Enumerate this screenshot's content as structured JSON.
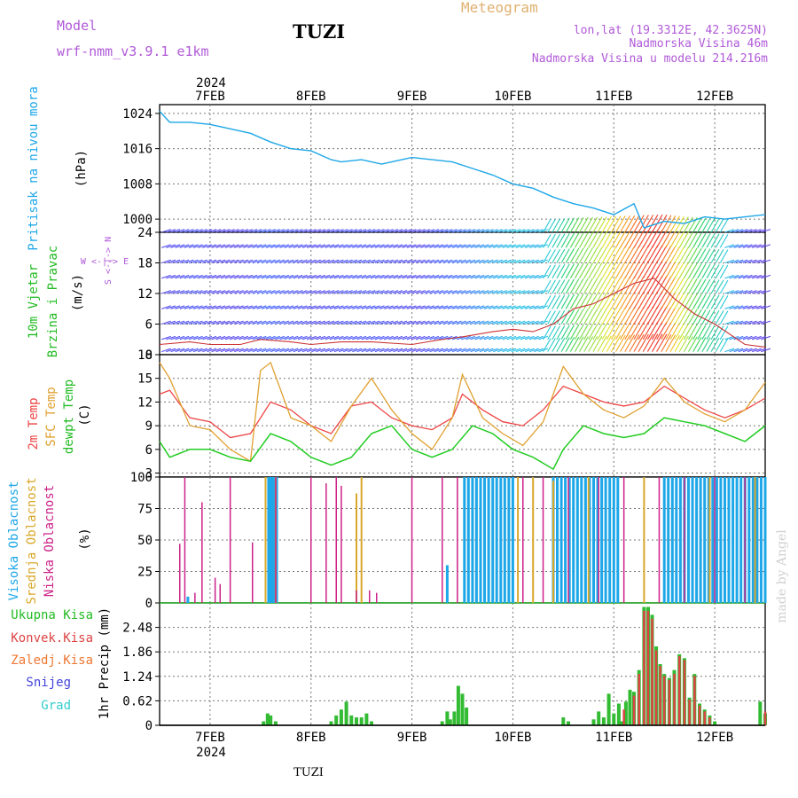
{
  "header": {
    "model_label": "Model",
    "model_name": "wrf-nmm_v3.9.1 e1km",
    "station": "TUZI",
    "title": "Meteogram",
    "location": "lon,lat (19.3312E, 42.3625N)",
    "elevation": "Nadmorska Visina 46m",
    "model_elevation": "Nadmorska Visina u modelu 214.216m"
  },
  "time_axis": {
    "year": "2024",
    "days": [
      "7FEB",
      "8FEB",
      "9FEB",
      "10FEB",
      "11FEB",
      "12FEB"
    ]
  },
  "footer": {
    "station": "TUZI",
    "watermark": "made by Angel"
  },
  "colors": {
    "pressure": "#1ea7e8",
    "wind_speed": "#cc3333",
    "temp_2m": "#ee4444",
    "temp_sfc": "#e0a030",
    "dewpoint": "#22cc22",
    "cloud_high": "#1ea7e8",
    "cloud_mid": "#d9a82a",
    "cloud_low": "#cc2288",
    "precip_total": "#33bb33",
    "precip_conv": "#dd4444",
    "precip_frz": "#ee7733",
    "snow": "#4444dd",
    "hail": "#33cccc"
  },
  "chart_data": [
    {
      "type": "line",
      "name": "pressure",
      "ylabel": "Pritisak na nivou mora",
      "unit": "(hPa)",
      "ylim": [
        997,
        1026
      ],
      "yticks": [
        1000,
        1008,
        1016,
        1024
      ],
      "grid": true,
      "series": [
        {
          "x": [
            6.5,
            6.6,
            6.8,
            7.0,
            7.2,
            7.4,
            7.6,
            7.8,
            8.0,
            8.2,
            8.3,
            8.5,
            8.7,
            8.9,
            9.0,
            9.2,
            9.4,
            9.6,
            9.8,
            10.0,
            10.2,
            10.4,
            10.6,
            10.8,
            11.0,
            11.2,
            11.3,
            11.5,
            11.7,
            11.9,
            12.1,
            12.3,
            12.5
          ],
          "y": [
            1024.5,
            1022,
            1022,
            1021.5,
            1020.5,
            1019.5,
            1017.5,
            1016,
            1015.5,
            1013.5,
            1013,
            1013.5,
            1012.5,
            1013.5,
            1014,
            1013.5,
            1013,
            1011.5,
            1010,
            1008,
            1007,
            1005,
            1003.5,
            1002.5,
            1001,
            1003.5,
            998,
            999.5,
            999,
            1000.5,
            1000,
            1000.5,
            1001
          ]
        }
      ]
    },
    {
      "type": "barbs",
      "name": "wind",
      "ylabel": "10m Vjetar Brzina i Pravac",
      "unit": "(m/s)",
      "direction_legend": "W <-|-> E",
      "direction_legend_ns": "S <-|-> N",
      "ylim": [
        0,
        24
      ],
      "yticks": [
        0,
        6,
        12,
        18,
        24
      ],
      "grid": true,
      "speed": {
        "x": [
          6.5,
          6.8,
          7.0,
          7.3,
          7.5,
          7.8,
          8.0,
          8.3,
          8.6,
          9.0,
          9.3,
          9.5,
          9.8,
          10.0,
          10.2,
          10.4,
          10.6,
          10.8,
          11.0,
          11.2,
          11.4,
          11.6,
          11.8,
          12.0,
          12.3,
          12.5
        ],
        "y": [
          2,
          2.5,
          2,
          2,
          3,
          2.5,
          2,
          2.5,
          2.5,
          2,
          3,
          3.5,
          4.5,
          5,
          4.5,
          6,
          9,
          10,
          12,
          14,
          15,
          11,
          8,
          6,
          2,
          1.5
        ]
      }
    },
    {
      "type": "line",
      "name": "temperature",
      "ylabel": "2m Temp / SFC Temp / dewpt Temp",
      "unit": "(C)",
      "ylim": [
        2.5,
        18
      ],
      "yticks": [
        3,
        6,
        9,
        12,
        15,
        18
      ],
      "grid": true,
      "series": [
        {
          "name": "2m Temp",
          "x": [
            6.5,
            6.6,
            6.8,
            7.0,
            7.2,
            7.4,
            7.6,
            7.8,
            8.0,
            8.2,
            8.4,
            8.6,
            8.8,
            9.0,
            9.2,
            9.4,
            9.5,
            9.7,
            9.9,
            10.1,
            10.3,
            10.5,
            10.7,
            10.9,
            11.1,
            11.3,
            11.5,
            11.7,
            11.9,
            12.1,
            12.3,
            12.5
          ],
          "y": [
            13,
            13.5,
            10,
            9.5,
            7.5,
            8,
            12,
            11,
            9,
            8,
            11.5,
            12,
            10,
            9,
            8.5,
            10,
            13,
            11,
            9.5,
            9,
            11,
            14,
            13,
            12,
            11.5,
            12,
            14,
            12.5,
            11,
            10,
            11,
            12.5
          ]
        },
        {
          "name": "SFC Temp",
          "x": [
            6.5,
            6.6,
            6.8,
            7.0,
            7.2,
            7.4,
            7.5,
            7.6,
            7.8,
            8.0,
            8.2,
            8.4,
            8.6,
            8.8,
            9.0,
            9.2,
            9.4,
            9.5,
            9.7,
            9.9,
            10.1,
            10.3,
            10.5,
            10.7,
            10.9,
            11.1,
            11.3,
            11.5,
            11.7,
            11.9,
            12.1,
            12.3,
            12.5
          ],
          "y": [
            17,
            15,
            9,
            8.5,
            6,
            4.5,
            16,
            17,
            10,
            9,
            7,
            11.5,
            15,
            11,
            8,
            6,
            10,
            15.5,
            10,
            8,
            6.5,
            9.5,
            16.5,
            13,
            11,
            10,
            11.5,
            15,
            12,
            10.5,
            9.5,
            11,
            14.5
          ]
        },
        {
          "name": "dewpt Temp",
          "x": [
            6.5,
            6.6,
            6.8,
            7.0,
            7.2,
            7.4,
            7.6,
            7.8,
            8.0,
            8.2,
            8.4,
            8.6,
            8.8,
            9.0,
            9.2,
            9.4,
            9.6,
            9.8,
            10.0,
            10.2,
            10.4,
            10.5,
            10.7,
            10.9,
            11.1,
            11.3,
            11.5,
            11.7,
            11.9,
            12.1,
            12.3,
            12.5
          ],
          "y": [
            7,
            5,
            6,
            6,
            5,
            4.5,
            8,
            7,
            5,
            4,
            5,
            8,
            9,
            6,
            5,
            6,
            9,
            8,
            6,
            5,
            3.5,
            6,
            9,
            8,
            7.5,
            8,
            10,
            9.5,
            9,
            8,
            7,
            9
          ]
        }
      ]
    },
    {
      "type": "bar",
      "name": "cloud_cover",
      "ylabel": "Visoka Oblacnost / Srednja Oblacnost / Niska Oblacnost",
      "unit": "(%)",
      "ylim": [
        0,
        100
      ],
      "yticks": [
        0,
        25,
        50,
        75,
        100
      ],
      "grid": true,
      "low_bars": {
        "x": [
          6.7,
          6.75,
          6.85,
          6.92,
          7.05,
          7.1,
          7.2,
          7.42,
          7.65,
          8.0,
          8.15,
          8.25,
          8.3,
          8.45,
          8.58,
          8.65,
          9.0,
          9.3,
          9.45,
          10.1,
          10.3,
          10.55,
          10.85,
          11.1,
          11.45,
          11.7,
          12.0,
          12.3
        ],
        "y": [
          47,
          100,
          8,
          80,
          20,
          15,
          100,
          48,
          100,
          100,
          95,
          100,
          93,
          10,
          10,
          8,
          100,
          100,
          100,
          100,
          100,
          100,
          100,
          100,
          100,
          100,
          100,
          100
        ]
      },
      "mid_bars": {
        "x": [
          7.55,
          7.65,
          8.45,
          8.5,
          10.05,
          10.2,
          10.4,
          10.75,
          11.3,
          11.95,
          12.4
        ],
        "y": [
          100,
          100,
          87,
          100,
          100,
          100,
          97,
          100,
          100,
          100,
          100
        ]
      },
      "high_bars": {
        "x": [
          6.78,
          7.58,
          7.6,
          7.62,
          7.64,
          7.66,
          9.35,
          9.52,
          9.56,
          9.6,
          9.64,
          9.68,
          9.72,
          9.76,
          9.8,
          9.84,
          9.88,
          9.92,
          9.96,
          10.0,
          10.4,
          10.44,
          10.48,
          10.52,
          10.56,
          10.6,
          10.64,
          10.68,
          10.72,
          10.76,
          10.8,
          10.84,
          10.88,
          10.92,
          10.96,
          11.0,
          11.04,
          11.5,
          11.54,
          11.58,
          11.62,
          11.66,
          11.7,
          11.74,
          11.78,
          11.82,
          11.86,
          11.9,
          11.94,
          11.98,
          12.02,
          12.06,
          12.1,
          12.14,
          12.18,
          12.22,
          12.26,
          12.3,
          12.34,
          12.38,
          12.42,
          12.46,
          12.5
        ],
        "y": [
          5,
          100,
          100,
          100,
          100,
          100,
          30,
          100,
          100,
          100,
          100,
          100,
          100,
          100,
          100,
          100,
          100,
          100,
          100,
          100,
          100,
          100,
          100,
          100,
          100,
          100,
          100,
          100,
          100,
          100,
          100,
          100,
          100,
          100,
          100,
          100,
          100,
          100,
          100,
          100,
          100,
          100,
          100,
          100,
          100,
          100,
          100,
          100,
          100,
          100,
          100,
          100,
          100,
          100,
          100,
          100,
          100,
          100,
          100,
          100,
          100,
          100,
          100
        ]
      }
    },
    {
      "type": "bar",
      "name": "precip",
      "ylabel": "1hr Precip (mm)",
      "legend": [
        "Ukupna Kisa",
        "Konvek.Kisa",
        "Zaledj.Kisa",
        "Snijeg",
        "Grad"
      ],
      "ylim": [
        0,
        3.1
      ],
      "yticks": [
        0,
        0.62,
        1.24,
        1.86,
        2.48
      ],
      "grid": true,
      "total": {
        "x": [
          7.53,
          7.57,
          7.6,
          7.65,
          8.2,
          8.25,
          8.3,
          8.35,
          8.4,
          8.45,
          8.5,
          8.55,
          8.6,
          9.3,
          9.35,
          9.38,
          9.42,
          9.46,
          9.5,
          9.54,
          10.5,
          10.55,
          10.8,
          10.85,
          10.9,
          10.95,
          11.0,
          11.05,
          11.08,
          11.12,
          11.16,
          11.2,
          11.25,
          11.3,
          11.34,
          11.38,
          11.42,
          11.46,
          11.5,
          11.55,
          11.6,
          11.65,
          11.7,
          11.75,
          11.8,
          11.85,
          11.9,
          11.95,
          12.0,
          12.45,
          12.5
        ],
        "y": [
          0.1,
          0.3,
          0.25,
          0.1,
          0.1,
          0.25,
          0.4,
          0.6,
          0.25,
          0.2,
          0.2,
          0.3,
          0.1,
          0.1,
          0.35,
          0.15,
          0.35,
          1.0,
          0.8,
          0.45,
          0.2,
          0.1,
          0.15,
          0.35,
          0.2,
          0.8,
          0.3,
          0.55,
          0.1,
          0.6,
          0.9,
          0.85,
          1.4,
          3.0,
          3.0,
          2.8,
          2.0,
          1.55,
          1.3,
          1.2,
          1.4,
          1.8,
          1.7,
          0.7,
          1.3,
          0.55,
          0.4,
          0.25,
          0.1,
          0.6,
          0.3
        ]
      },
      "convective": {
        "x": [
          11.1,
          11.2,
          11.25,
          11.3,
          11.34,
          11.38,
          11.42,
          11.46,
          11.5,
          11.55,
          11.6,
          11.65,
          11.7,
          11.75,
          11.8,
          11.85,
          11.9,
          11.95,
          12.5
        ],
        "y": [
          0.4,
          0.75,
          1.3,
          2.9,
          2.9,
          2.7,
          1.9,
          1.5,
          1.25,
          1.15,
          1.3,
          1.75,
          1.65,
          0.65,
          1.25,
          0.5,
          0.35,
          0.2,
          0.35
        ]
      }
    }
  ]
}
